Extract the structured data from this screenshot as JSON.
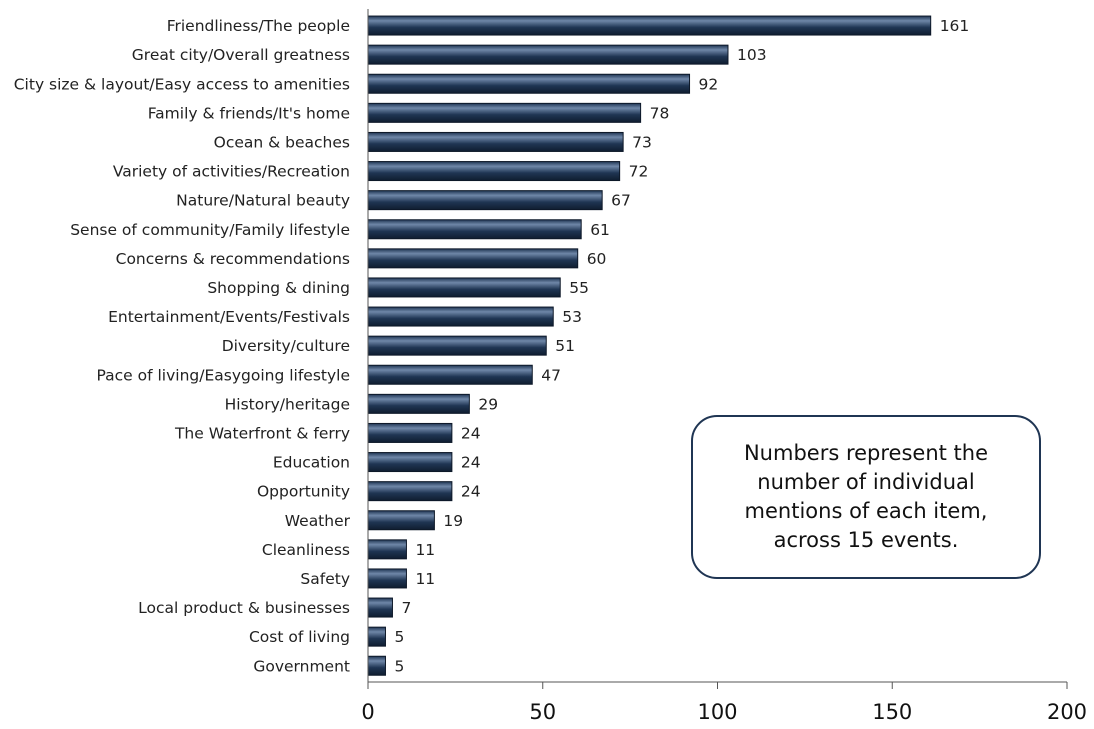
{
  "chart_data": {
    "type": "bar",
    "orientation": "horizontal",
    "categories": [
      "Friendliness/The people",
      "Great city/Overall greatness",
      "City size & layout/Easy access to amenities",
      "Family & friends/It's home",
      "Ocean & beaches",
      "Variety of activities/Recreation",
      "Nature/Natural beauty",
      "Sense of community/Family lifestyle",
      "Concerns & recommendations",
      "Shopping & dining",
      "Entertainment/Events/Festivals",
      "Diversity/culture",
      "Pace of living/Easygoing lifestyle",
      "History/heritage",
      "The Waterfront & ferry",
      "Education",
      "Opportunity",
      "Weather",
      "Cleanliness",
      "Safety",
      "Local product & businesses",
      "Cost of living",
      "Government"
    ],
    "values": [
      161,
      103,
      92,
      78,
      73,
      72,
      67,
      61,
      60,
      55,
      53,
      51,
      47,
      29,
      24,
      24,
      24,
      19,
      11,
      11,
      7,
      5,
      5
    ],
    "xlim": [
      0,
      200
    ],
    "xticks": [
      0,
      50,
      100,
      150,
      200
    ],
    "grid": false,
    "legend": "none",
    "data_labels": true
  },
  "annotation": {
    "text": "Numbers represent the number of individual mentions of each item, across 15 events."
  },
  "colors": {
    "bar": "#1f3553",
    "bar_highlight": "#6f87a8",
    "axis": "#555555"
  }
}
